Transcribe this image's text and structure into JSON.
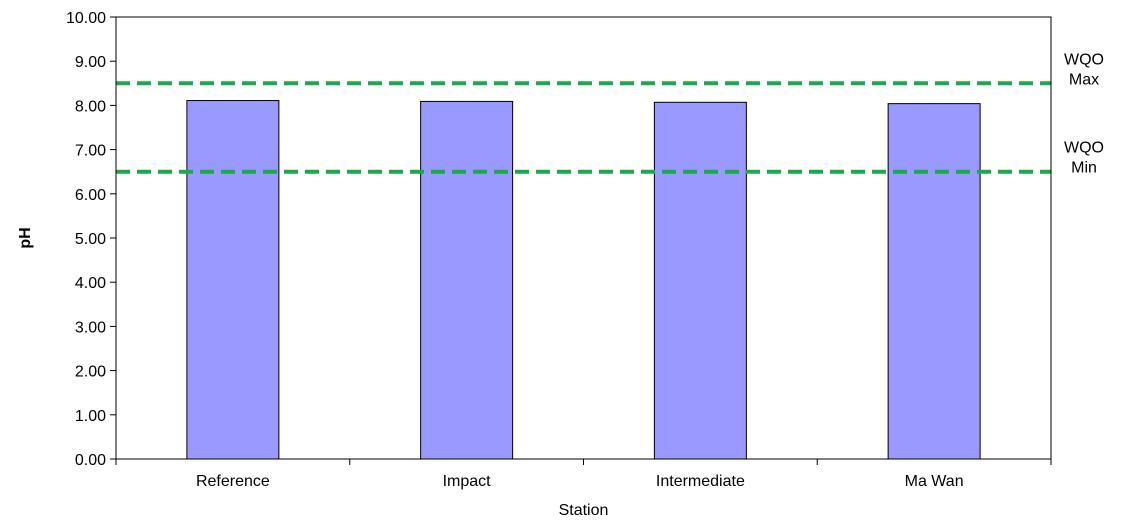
{
  "chart_data": {
    "type": "bar",
    "xlabel": "Station",
    "ylabel": "pH",
    "categories": [
      "Reference",
      "Impact",
      "Intermediate",
      "Ma Wan"
    ],
    "values": [
      8.11,
      8.09,
      8.07,
      8.04
    ],
    "ylim": [
      0,
      10
    ],
    "ytick_step": 1,
    "ytick_labels": [
      "0.00",
      "1.00",
      "2.00",
      "3.00",
      "4.00",
      "5.00",
      "6.00",
      "7.00",
      "8.00",
      "9.00",
      "10.00"
    ],
    "bar_color": "#9999ff",
    "bar_edge_color": "#000000",
    "grid": false,
    "legend": "none",
    "reference_lines": [
      {
        "value": 8.5,
        "label_line1": "WQO",
        "label_line2": "Max",
        "color": "#1aaa4a",
        "style": "dashed"
      },
      {
        "value": 6.5,
        "label_line1": "WQO",
        "label_line2": "Min",
        "color": "#1aaa4a",
        "style": "dashed"
      }
    ]
  }
}
